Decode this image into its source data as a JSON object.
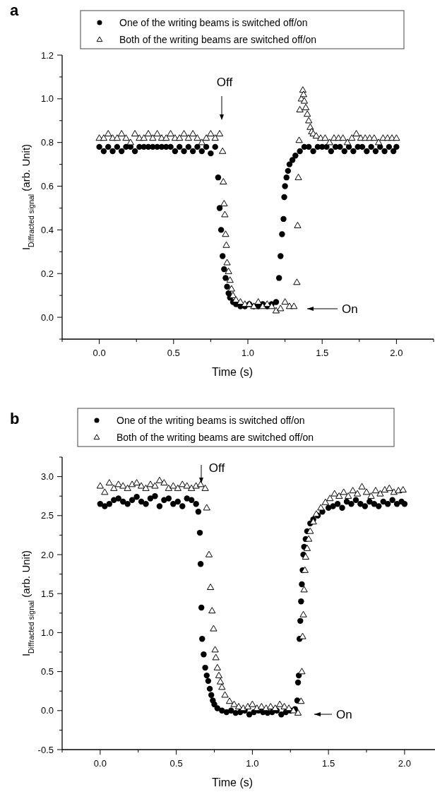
{
  "chart_data": [
    {
      "type": "scatter",
      "title": "a",
      "xlabel": "Time (s)",
      "ylabel": "I$_{Diffracted signal}$  (arb. Unit)",
      "legend": "top",
      "xlim": [
        -0.25,
        2.25
      ],
      "ylim": [
        -0.1,
        1.2
      ],
      "xticks": [
        {
          "value": -0.25,
          "label": null
        },
        {
          "value": 0,
          "label": "0.0"
        },
        {
          "value": 0.25,
          "label": null
        },
        {
          "value": 0.5,
          "label": "0.5"
        },
        {
          "value": 0.75,
          "label": null
        },
        {
          "value": 1,
          "label": "1.0"
        },
        {
          "value": 1.25,
          "label": null
        },
        {
          "value": 1.5,
          "label": "1.5"
        },
        {
          "value": 1.75,
          "label": null
        },
        {
          "value": 2,
          "label": "2.0"
        },
        {
          "value": 2.25,
          "label": null
        }
      ],
      "yticks": [
        {
          "value": -0.1,
          "label": null
        },
        {
          "value": 0,
          "label": "0.0"
        },
        {
          "value": 0.1,
          "label": null
        },
        {
          "value": 0.2,
          "label": "0.2"
        },
        {
          "value": 0.3,
          "label": null
        },
        {
          "value": 0.4,
          "label": "0.4"
        },
        {
          "value": 0.5,
          "label": null
        },
        {
          "value": 0.6,
          "label": "0.6"
        },
        {
          "value": 0.7,
          "label": null
        },
        {
          "value": 0.8,
          "label": "0.8"
        },
        {
          "value": 0.9,
          "label": null
        },
        {
          "value": 1,
          "label": "1.0"
        },
        {
          "value": 1.1,
          "label": null
        },
        {
          "value": 1.2,
          "label": "1.2"
        }
      ],
      "annotations": [
        "Off",
        "On"
      ],
      "series": [
        {
          "name": "One of the writing beams is switched off/on",
          "color": "#000000",
          "marker": "circle",
          "x": [
            0,
            0.03,
            0.06,
            0.09,
            0.12,
            0.15,
            0.18,
            0.21,
            0.24,
            0.27,
            0.3,
            0.33,
            0.36,
            0.39,
            0.42,
            0.45,
            0.48,
            0.51,
            0.54,
            0.57,
            0.6,
            0.63,
            0.66,
            0.69,
            0.72,
            0.75,
            0.78,
            0.8,
            0.81,
            0.82,
            0.83,
            0.84,
            0.85,
            0.86,
            0.87,
            0.88,
            0.9,
            0.92,
            0.95,
            0.98,
            1.01,
            1.04,
            1.07,
            1.1,
            1.13,
            1.16,
            1.19,
            1.21,
            1.22,
            1.23,
            1.24,
            1.245,
            1.25,
            1.26,
            1.27,
            1.28,
            1.3,
            1.32,
            1.35,
            1.38,
            1.41,
            1.44,
            1.47,
            1.5,
            1.53,
            1.56,
            1.59,
            1.62,
            1.65,
            1.68,
            1.71,
            1.74,
            1.77,
            1.8,
            1.83,
            1.86,
            1.89,
            1.92,
            1.95,
            1.98,
            2
          ],
          "values": [
            0.78,
            0.76,
            0.78,
            0.76,
            0.78,
            0.76,
            0.78,
            0.78,
            0.76,
            0.78,
            0.78,
            0.78,
            0.78,
            0.78,
            0.78,
            0.78,
            0.78,
            0.76,
            0.78,
            0.76,
            0.78,
            0.76,
            0.78,
            0.76,
            0.78,
            0.75,
            0.78,
            0.64,
            0.5,
            0.4,
            0.28,
            0.22,
            0.18,
            0.14,
            0.11,
            0.09,
            0.07,
            0.06,
            0.05,
            0.05,
            0.06,
            0.05,
            0.05,
            0.06,
            0.05,
            0.06,
            0.07,
            0.18,
            0.28,
            0.38,
            0.45,
            0.55,
            0.6,
            0.64,
            0.67,
            0.7,
            0.72,
            0.74,
            0.76,
            0.78,
            0.78,
            0.76,
            0.78,
            0.78,
            0.78,
            0.76,
            0.78,
            0.78,
            0.76,
            0.78,
            0.76,
            0.78,
            0.78,
            0.76,
            0.78,
            0.76,
            0.78,
            0.76,
            0.78,
            0.76,
            0.78
          ]
        },
        {
          "name": "Both of the writing beams are switched off/on",
          "color": "#000000",
          "marker": "triangle",
          "x": [
            0,
            0.03,
            0.06,
            0.09,
            0.12,
            0.15,
            0.18,
            0.21,
            0.24,
            0.27,
            0.3,
            0.33,
            0.36,
            0.39,
            0.42,
            0.45,
            0.48,
            0.51,
            0.54,
            0.57,
            0.6,
            0.63,
            0.66,
            0.69,
            0.72,
            0.75,
            0.78,
            0.81,
            0.83,
            0.835,
            0.84,
            0.845,
            0.85,
            0.855,
            0.86,
            0.87,
            0.88,
            0.89,
            0.9,
            0.92,
            0.95,
            0.98,
            1.01,
            1.04,
            1.07,
            1.1,
            1.13,
            1.16,
            1.19,
            1.22,
            1.25,
            1.28,
            1.31,
            1.33,
            1.335,
            1.34,
            1.345,
            1.35,
            1.36,
            1.37,
            1.375,
            1.38,
            1.39,
            1.4,
            1.41,
            1.42,
            1.43,
            1.44,
            1.46,
            1.49,
            1.52,
            1.55,
            1.58,
            1.61,
            1.64,
            1.67,
            1.7,
            1.73,
            1.76,
            1.79,
            1.82,
            1.85,
            1.88,
            1.91,
            1.94,
            1.97,
            2
          ],
          "values": [
            0.82,
            0.82,
            0.84,
            0.82,
            0.82,
            0.84,
            0.82,
            0.8,
            0.84,
            0.82,
            0.82,
            0.84,
            0.82,
            0.84,
            0.82,
            0.82,
            0.84,
            0.82,
            0.82,
            0.84,
            0.82,
            0.84,
            0.82,
            0.8,
            0.82,
            0.84,
            0.82,
            0.84,
            0.76,
            0.62,
            0.52,
            0.47,
            0.38,
            0.33,
            0.25,
            0.21,
            0.17,
            0.13,
            0.1,
            0.08,
            0.07,
            0.06,
            0.06,
            0.05,
            0.07,
            0.05,
            0.06,
            0.05,
            0.03,
            0.04,
            0.07,
            0.05,
            0.05,
            0.16,
            0.42,
            0.64,
            0.81,
            0.95,
            1,
            1.04,
            1.02,
            0.99,
            0.96,
            0.93,
            0.9,
            0.87,
            0.85,
            0.84,
            0.83,
            0.82,
            0.82,
            0.8,
            0.82,
            0.82,
            0.82,
            0.8,
            0.82,
            0.84,
            0.82,
            0.82,
            0.82,
            0.82,
            0.8,
            0.82,
            0.82,
            0.82,
            0.82
          ]
        }
      ]
    },
    {
      "type": "scatter",
      "title": "b",
      "xlabel": "Time (s)",
      "ylabel": "I$_{Diffracted signal}$  (arb. Unit)",
      "legend": "top",
      "xlim": [
        -0.25,
        2.2
      ],
      "ylim": [
        -0.5,
        3.25
      ],
      "xticks": [
        {
          "value": -0.25,
          "label": null
        },
        {
          "value": 0,
          "label": "0.0"
        },
        {
          "value": 0.25,
          "label": null
        },
        {
          "value": 0.5,
          "label": "0.5"
        },
        {
          "value": 0.75,
          "label": null
        },
        {
          "value": 1,
          "label": "1.0"
        },
        {
          "value": 1.25,
          "label": null
        },
        {
          "value": 1.5,
          "label": "1.5"
        },
        {
          "value": 1.75,
          "label": null
        },
        {
          "value": 2,
          "label": "2.0"
        }
      ],
      "yticks": [
        -0.5,
        {
          "value": -0.25,
          "label": null
        },
        {
          "value": 0,
          "label": "0.0"
        },
        {
          "value": 0.25,
          "label": null
        },
        0.5,
        {
          "value": 0.75,
          "label": null
        },
        {
          "value": 1,
          "label": "1.0"
        },
        {
          "value": 1.25,
          "label": null
        },
        1.5,
        {
          "value": 1.75,
          "label": null
        },
        {
          "value": 2,
          "label": "2.0"
        },
        {
          "value": 2.25,
          "label": null
        },
        2.5,
        {
          "value": 2.75,
          "label": null
        },
        {
          "value": 3,
          "label": "3.0"
        },
        {
          "value": 3.25,
          "label": null
        }
      ],
      "annotations": [
        "Off",
        "On"
      ],
      "series": [
        {
          "name": "One of the writing beams is switched off/on",
          "color": "#000000",
          "marker": "circle",
          "x": [
            0,
            0.03,
            0.06,
            0.09,
            0.12,
            0.15,
            0.18,
            0.21,
            0.24,
            0.27,
            0.3,
            0.33,
            0.36,
            0.39,
            0.42,
            0.45,
            0.48,
            0.51,
            0.54,
            0.57,
            0.6,
            0.63,
            0.645,
            0.655,
            0.66,
            0.665,
            0.67,
            0.68,
            0.69,
            0.7,
            0.71,
            0.72,
            0.73,
            0.74,
            0.75,
            0.77,
            0.8,
            0.83,
            0.86,
            0.89,
            0.92,
            0.95,
            0.98,
            1.01,
            1.04,
            1.07,
            1.1,
            1.13,
            1.16,
            1.19,
            1.22,
            1.25,
            1.28,
            1.295,
            1.3,
            1.305,
            1.31,
            1.315,
            1.32,
            1.325,
            1.33,
            1.335,
            1.34,
            1.35,
            1.36,
            1.38,
            1.4,
            1.43,
            1.46,
            1.5,
            1.53,
            1.56,
            1.59,
            1.62,
            1.65,
            1.68,
            1.71,
            1.74,
            1.77,
            1.8,
            1.83,
            1.86,
            1.89,
            1.92,
            1.95,
            1.98,
            2
          ],
          "values": [
            2.65,
            2.62,
            2.65,
            2.7,
            2.72,
            2.68,
            2.65,
            2.7,
            2.74,
            2.68,
            2.65,
            2.72,
            2.75,
            2.62,
            2.7,
            2.72,
            2.65,
            2.68,
            2.62,
            2.72,
            2.7,
            2.65,
            2.55,
            2.28,
            1.88,
            1.32,
            0.92,
            0.72,
            0.55,
            0.45,
            0.38,
            0.28,
            0.2,
            0.13,
            0.08,
            0.03,
            0,
            -0.02,
            0,
            -0.03,
            -0.02,
            0,
            -0.05,
            -0.02,
            0,
            -0.02,
            -0.03,
            -0.02,
            0,
            -0.05,
            -0.02,
            0,
            0.02,
            0.13,
            0.36,
            0.45,
            0.92,
            1.15,
            1.4,
            1.62,
            1.8,
            2,
            2.1,
            2.2,
            2.3,
            2.4,
            2.45,
            2.5,
            2.55,
            2.6,
            2.62,
            2.65,
            2.6,
            2.68,
            2.65,
            2.7,
            2.65,
            2.62,
            2.68,
            2.65,
            2.62,
            2.68,
            2.65,
            2.7,
            2.65,
            2.68,
            2.65
          ]
        },
        {
          "name": "Both of the writing beams are switched off/on",
          "color": "#000000",
          "marker": "triangle",
          "x": [
            0,
            0.03,
            0.06,
            0.09,
            0.12,
            0.15,
            0.18,
            0.21,
            0.24,
            0.27,
            0.3,
            0.33,
            0.36,
            0.39,
            0.42,
            0.45,
            0.48,
            0.51,
            0.54,
            0.57,
            0.6,
            0.63,
            0.66,
            0.69,
            0.7,
            0.715,
            0.725,
            0.735,
            0.745,
            0.755,
            0.76,
            0.77,
            0.78,
            0.79,
            0.8,
            0.82,
            0.85,
            0.88,
            0.91,
            0.94,
            0.97,
            1,
            1.03,
            1.06,
            1.09,
            1.12,
            1.15,
            1.18,
            1.21,
            1.24,
            1.27,
            1.3,
            1.32,
            1.325,
            1.33,
            1.335,
            1.34,
            1.345,
            1.35,
            1.36,
            1.37,
            1.38,
            1.4,
            1.42,
            1.45,
            1.48,
            1.51,
            1.54,
            1.57,
            1.6,
            1.63,
            1.66,
            1.69,
            1.72,
            1.75,
            1.78,
            1.81,
            1.84,
            1.87,
            1.9,
            1.93,
            1.96,
            1.99
          ],
          "values": [
            2.88,
            2.8,
            2.92,
            2.85,
            2.9,
            2.88,
            2.85,
            2.9,
            2.92,
            2.88,
            2.85,
            2.9,
            2.88,
            2.95,
            2.92,
            2.85,
            2.88,
            2.85,
            2.9,
            2.88,
            2.85,
            2.88,
            2.9,
            2.85,
            2.6,
            2,
            1.58,
            1.28,
            1.05,
            0.78,
            0.68,
            0.55,
            0.45,
            0.37,
            0.3,
            0.2,
            0.12,
            0.08,
            0.05,
            0.03,
            0.05,
            0.08,
            0.03,
            0.05,
            0.03,
            0.05,
            0.03,
            0.08,
            0.05,
            0.03,
            0,
            -0.03,
            0.12,
            0.5,
            0.95,
            1.23,
            1.55,
            1.8,
            1.97,
            2.08,
            2.2,
            2.3,
            2.42,
            2.52,
            2.6,
            2.67,
            2.72,
            2.78,
            2.75,
            2.8,
            2.75,
            2.82,
            2.78,
            2.87,
            2.8,
            2.75,
            2.82,
            2.78,
            2.83,
            2.85,
            2.8,
            2.82,
            2.83
          ]
        }
      ]
    }
  ]
}
